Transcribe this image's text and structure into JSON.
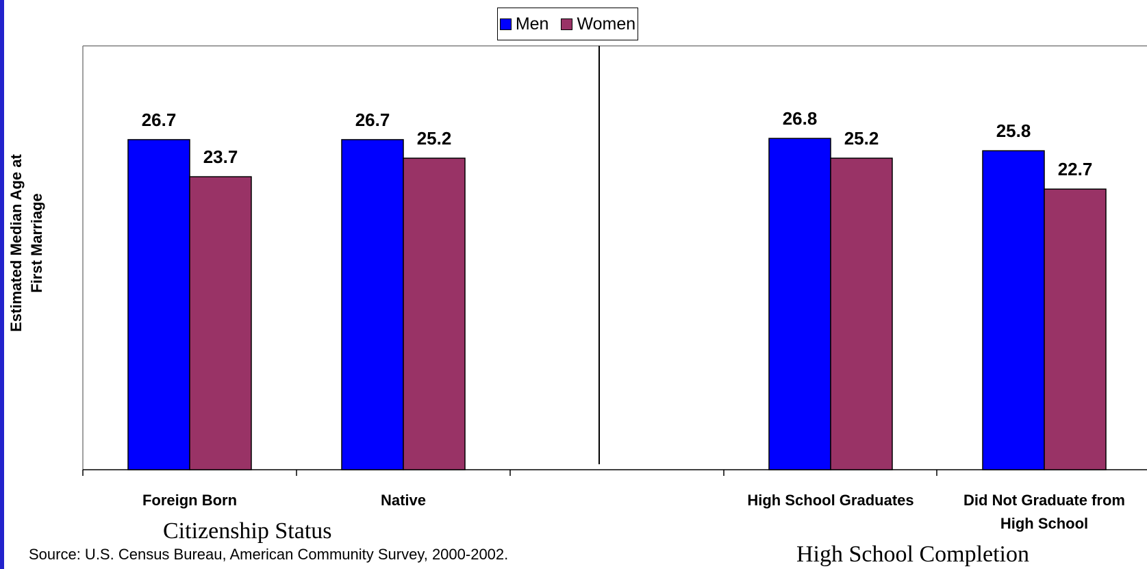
{
  "chart_data": {
    "type": "bar",
    "ylabel_lines": [
      "Estimated Median Age at",
      "First Marriage"
    ],
    "categories": [
      "Foreign Born",
      "Native",
      "High School Graduates",
      "Did Not Graduate from High School"
    ],
    "category_label_lines": [
      [
        "Foreign Born"
      ],
      [
        "Native"
      ],
      [
        "High School Graduates"
      ],
      [
        "Did Not Graduate from",
        "High School"
      ]
    ],
    "series": [
      {
        "name": "Men",
        "color": "#0000ff",
        "values": [
          26.7,
          26.7,
          26.8,
          25.8
        ]
      },
      {
        "name": "Women",
        "color": "#993366",
        "values": [
          23.7,
          25.2,
          25.2,
          22.7
        ]
      }
    ],
    "groups": [
      {
        "title": "Citizenship Status",
        "categories": [
          "Foreign Born",
          "Native"
        ]
      },
      {
        "title": "High School Completion",
        "categories": [
          "High School Graduates",
          "Did Not Graduate from High School"
        ]
      }
    ],
    "data_labels": true,
    "grid": false,
    "legend_position": "top-center"
  },
  "legend": {
    "men_label": "Men",
    "women_label": "Women"
  },
  "group_titles": {
    "citizenship": "Citizenship Status",
    "hs": "High School Completion"
  },
  "source": "Source: U.S. Census Bureau, American Community Survey, 2000-2002."
}
